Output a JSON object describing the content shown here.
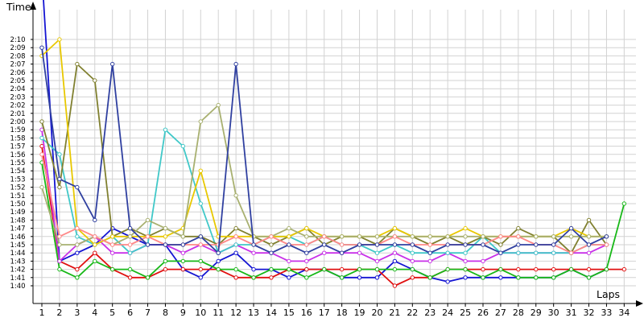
{
  "chart_data": {
    "type": "line",
    "xlabel": "Laps",
    "ylabel": "Time",
    "x": [
      1,
      2,
      3,
      4,
      5,
      6,
      7,
      8,
      9,
      10,
      11,
      12,
      13,
      14,
      15,
      16,
      17,
      18,
      19,
      20,
      21,
      22,
      23,
      24,
      25,
      26,
      27,
      28,
      29,
      30,
      31,
      32,
      33,
      34
    ],
    "x_ticks": [
      "1",
      "2",
      "3",
      "4",
      "5",
      "6",
      "7",
      "8",
      "9",
      "10",
      "11",
      "12",
      "13",
      "14",
      "15",
      "16",
      "17",
      "18",
      "19",
      "20",
      "21",
      "22",
      "23",
      "24",
      "25",
      "26",
      "27",
      "28",
      "29",
      "30",
      "31",
      "32",
      "33",
      "34"
    ],
    "y_ticks": [
      "1:40",
      "1:41",
      "1:42",
      "1:43",
      "1:44",
      "1:45",
      "1:46",
      "1:47",
      "1:48",
      "1:49",
      "1:50",
      "1:51",
      "1:52",
      "1:53",
      "1:54",
      "1:55",
      "1:56",
      "1:57",
      "1:58",
      "1:59",
      "2:00",
      "2:01",
      "2:02",
      "2:03",
      "2:04",
      "2:05",
      "2:06",
      "2:07",
      "2:08",
      "2:09",
      "2:10"
    ],
    "ylim_seconds": [
      99,
      132
    ],
    "grid": true,
    "legend": "none",
    "series": [
      {
        "color": "#1414d2",
        "values": [
          138,
          103,
          104,
          105,
          107,
          106,
          105,
          105,
          102,
          101,
          103,
          104,
          102,
          102,
          101,
          102,
          102,
          101,
          101,
          101,
          103,
          102,
          101,
          100.5,
          101,
          101,
          101,
          101,
          101,
          101,
          102,
          101,
          102,
          null
        ]
      },
      {
        "color": "#e01010",
        "values": [
          117,
          103,
          102,
          104,
          102,
          101,
          101,
          102,
          102,
          102,
          102,
          101,
          101,
          101,
          102,
          102,
          102,
          102,
          102,
          102,
          100,
          101,
          101,
          102,
          102,
          102,
          102,
          102,
          102,
          102,
          102,
          102,
          102,
          102
        ]
      },
      {
        "color": "#18b818",
        "values": [
          115,
          102,
          101,
          103,
          102,
          102,
          101,
          103,
          103,
          103,
          102,
          102,
          101,
          102,
          102,
          101,
          102,
          101,
          102,
          102,
          102,
          102,
          101,
          102,
          102,
          101,
          102,
          101,
          101,
          101,
          102,
          101,
          102,
          110
        ]
      },
      {
        "color": "#c830e8",
        "values": [
          119,
          103,
          105,
          106,
          104,
          104,
          105,
          105,
          104,
          105,
          104,
          105,
          104,
          104,
          103,
          103,
          104,
          104,
          104,
          103,
          104,
          103,
          103,
          104,
          103,
          103,
          104,
          104,
          104,
          104,
          104,
          104,
          105,
          null
        ]
      },
      {
        "color": "#40c8c8",
        "values": [
          118,
          116,
          106,
          105,
          106,
          104,
          105,
          119,
          117,
          110,
          104,
          105,
          105,
          106,
          106,
          105,
          106,
          105,
          105,
          104,
          105,
          104,
          104,
          104,
          104,
          106,
          104,
          104,
          104,
          104,
          104,
          105,
          105,
          null
        ]
      },
      {
        "color": "#808030",
        "values": [
          120,
          112,
          127,
          125,
          106,
          107,
          106,
          107,
          106,
          106,
          105,
          107,
          106,
          105,
          106,
          107,
          105,
          106,
          106,
          105,
          107,
          106,
          105,
          106,
          105,
          106,
          105,
          107,
          106,
          106,
          104,
          108,
          105,
          null
        ]
      },
      {
        "color": "#e8c800",
        "values": [
          128,
          130,
          107,
          105,
          106,
          106,
          106,
          106,
          107,
          114,
          106,
          106,
          106,
          106,
          106,
          107,
          106,
          106,
          106,
          106,
          107,
          106,
          106,
          106,
          107,
          106,
          106,
          106,
          106,
          106,
          107,
          106,
          106,
          null
        ]
      },
      {
        "color": "#a8b070",
        "values": [
          112,
          105,
          105,
          106,
          105,
          106,
          108,
          107,
          106,
          120,
          122,
          111,
          106,
          106,
          107,
          106,
          106,
          106,
          106,
          106,
          106,
          106,
          106,
          106,
          106,
          106,
          106,
          106,
          106,
          106,
          106,
          106,
          106,
          null
        ]
      },
      {
        "color": "#ff8888",
        "values": [
          116,
          106,
          107,
          106,
          105,
          105,
          106,
          105,
          105,
          105,
          105,
          106,
          105,
          106,
          105,
          105,
          106,
          105,
          105,
          105,
          106,
          105,
          105,
          105,
          105,
          105,
          106,
          106,
          105,
          105,
          104,
          105,
          105,
          null
        ]
      },
      {
        "color": "#3040a0",
        "values": [
          129,
          113,
          112,
          108,
          127,
          107,
          105,
          105,
          105,
          106,
          104,
          127,
          105,
          104,
          105,
          104,
          105,
          104,
          105,
          105,
          105,
          105,
          104,
          105,
          105,
          105,
          104,
          105,
          105,
          105,
          107,
          105,
          106,
          null
        ]
      }
    ]
  }
}
